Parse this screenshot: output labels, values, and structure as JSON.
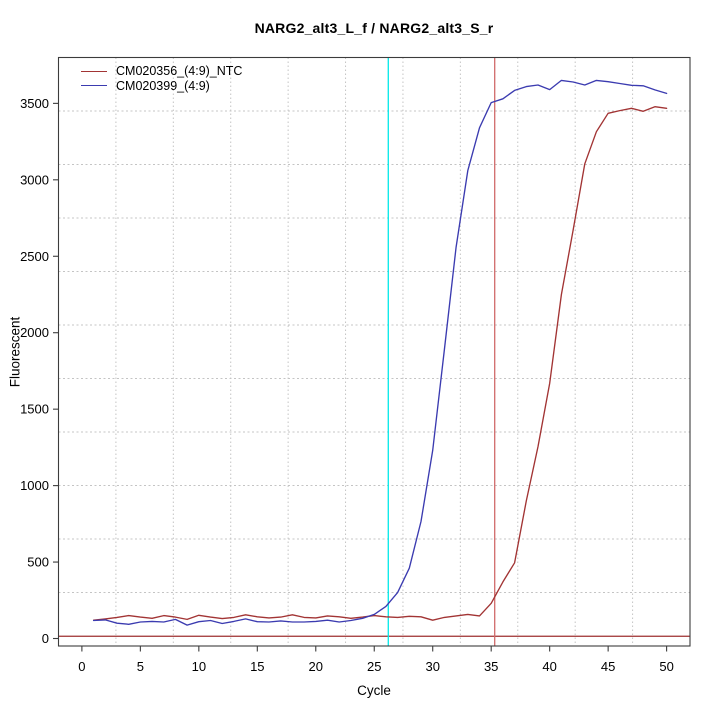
{
  "window": {
    "background": "#ffffff"
  },
  "title": "NARG2_alt3_L_f / NARG2_alt3_S_r",
  "chart_data": {
    "type": "line",
    "title": "NARG2_alt3_L_f / NARG2_alt3_S_r",
    "xlabel": "Cycle",
    "ylabel": "Fluorescent",
    "xlim": [
      -2,
      52
    ],
    "ylim": [
      -49,
      3800
    ],
    "xticks": [
      0,
      5,
      10,
      15,
      20,
      25,
      30,
      35,
      40,
      45,
      50
    ],
    "yticks": [
      0,
      500,
      1000,
      1500,
      2000,
      2500,
      3000,
      3500
    ],
    "grid": {
      "nx": 11,
      "ny": 11,
      "color": "#c4c4c4",
      "style": "dotted"
    },
    "x": [
      1,
      2,
      3,
      4,
      5,
      6,
      7,
      8,
      9,
      10,
      11,
      12,
      13,
      14,
      15,
      16,
      17,
      18,
      19,
      20,
      21,
      22,
      23,
      24,
      25,
      26,
      27,
      28,
      29,
      30,
      31,
      32,
      33,
      34,
      35,
      36,
      37,
      38,
      39,
      40,
      41,
      42,
      43,
      44,
      45,
      46,
      47,
      48,
      49,
      50
    ],
    "series": [
      {
        "name": "CM020356_(4:9)_NTC",
        "color": "#a23434",
        "values": [
          120,
          128,
          138,
          150,
          140,
          132,
          150,
          140,
          125,
          152,
          140,
          130,
          138,
          155,
          142,
          135,
          140,
          155,
          138,
          135,
          148,
          142,
          132,
          140,
          150,
          142,
          138,
          145,
          142,
          120,
          138,
          148,
          158,
          148,
          230,
          370,
          495,
          900,
          1255,
          1670,
          2250,
          2670,
          3105,
          3315,
          3435,
          3453,
          3468,
          3448,
          3478,
          3468
        ]
      },
      {
        "name": "CM020399_(4:9)",
        "color": "#3b3bb0",
        "values": [
          118,
          122,
          100,
          93,
          108,
          112,
          108,
          125,
          88,
          110,
          118,
          98,
          112,
          128,
          110,
          108,
          115,
          108,
          108,
          112,
          120,
          108,
          118,
          132,
          158,
          210,
          300,
          460,
          765,
          1230,
          1890,
          2560,
          3060,
          3340,
          3505,
          3530,
          3585,
          3610,
          3620,
          3590,
          3650,
          3640,
          3620,
          3650,
          3642,
          3630,
          3618,
          3615,
          3588,
          3565
        ]
      }
    ],
    "vlines": [
      {
        "x": 26.2,
        "color": "#00e8e8",
        "name": "ct-marker-CM020399"
      },
      {
        "x": 35.3,
        "color": "#d16a6a",
        "name": "ct-marker-CM020356"
      }
    ],
    "hlines": [
      {
        "y": 15,
        "color": "#9e2f2f",
        "name": "baseline-zero-line"
      }
    ],
    "legend": {
      "position": "top-left"
    }
  }
}
